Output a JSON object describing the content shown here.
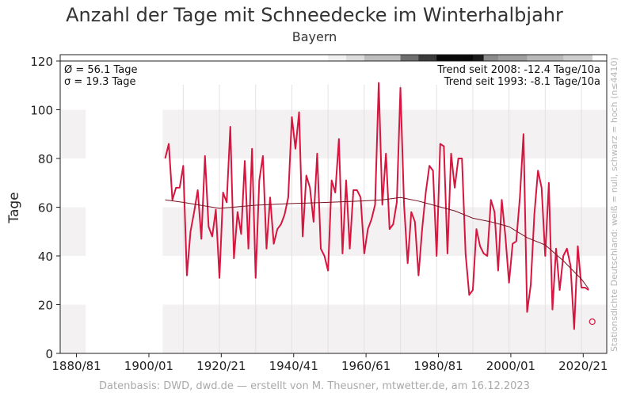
{
  "chart_data": {
    "type": "line",
    "title": "Anzahl der Tage mit Schneedecke im Winterhalbjahr",
    "subtitle": "Bayern",
    "ylabel": "Tage",
    "ylim": [
      0,
      120
    ],
    "yticks": [
      0,
      20,
      40,
      60,
      80,
      100,
      120
    ],
    "xlim": [
      1876,
      2027
    ],
    "xticks": [
      {
        "year": 1880,
        "label": "1880/81"
      },
      {
        "year": 1900,
        "label": "1900/01"
      },
      {
        "year": 1920,
        "label": "1920/21"
      },
      {
        "year": 1940,
        "label": "1940/41"
      },
      {
        "year": 1960,
        "label": "1960/61"
      },
      {
        "year": 1980,
        "label": "1980/81"
      },
      {
        "year": 2000,
        "label": "2000/01"
      },
      {
        "year": 2020,
        "label": "2020/21"
      }
    ],
    "stats": {
      "mean": "Ø = 56.1 Tage",
      "sigma": "σ = 19.3 Tage"
    },
    "trends": [
      "Trend seit 2008: -12.4 Tage/10a",
      "Trend seit 1993: -8.1 Tage/10a"
    ],
    "series_color": "#d6163f",
    "trend_color": "#7a1020",
    "x": [
      1905,
      1906,
      1907,
      1908,
      1909,
      1910,
      1911,
      1912,
      1913,
      1914,
      1915,
      1916,
      1917,
      1918,
      1919,
      1920,
      1921,
      1922,
      1923,
      1924,
      1925,
      1926,
      1927,
      1928,
      1929,
      1930,
      1931,
      1932,
      1933,
      1934,
      1935,
      1936,
      1937,
      1938,
      1939,
      1940,
      1941,
      1942,
      1943,
      1944,
      1945,
      1946,
      1947,
      1948,
      1949,
      1950,
      1951,
      1952,
      1953,
      1954,
      1955,
      1956,
      1957,
      1958,
      1959,
      1960,
      1961,
      1962,
      1963,
      1964,
      1965,
      1966,
      1967,
      1968,
      1969,
      1970,
      1971,
      1972,
      1973,
      1974,
      1975,
      1976,
      1977,
      1978,
      1979,
      1980,
      1981,
      1982,
      1983,
      1984,
      1985,
      1986,
      1987,
      1988,
      1989,
      1990,
      1991,
      1992,
      1993,
      1994,
      1995,
      1996,
      1997,
      1998,
      1999,
      2000,
      2001,
      2002,
      2003,
      2004,
      2005,
      2006,
      2007,
      2008,
      2009,
      2010,
      2011,
      2012,
      2013,
      2014,
      2015,
      2016,
      2017,
      2018,
      2019,
      2020,
      2021,
      2022
    ],
    "values": [
      80,
      86,
      63,
      68,
      68,
      77,
      32,
      50,
      58,
      67,
      47,
      81,
      52,
      48,
      59,
      31,
      66,
      62,
      93,
      39,
      58,
      49,
      79,
      43,
      84,
      31,
      71,
      81,
      43,
      64,
      45,
      51,
      53,
      57,
      64,
      97,
      84,
      99,
      48,
      73,
      68,
      54,
      82,
      43,
      40,
      34,
      71,
      66,
      88,
      41,
      71,
      43,
      67,
      67,
      64,
      41,
      51,
      55,
      61,
      111,
      61,
      82,
      51,
      53,
      62,
      109,
      61,
      37,
      58,
      54,
      32,
      51,
      66,
      77,
      75,
      40,
      86,
      85,
      41,
      82,
      68,
      80,
      80,
      41,
      24,
      26,
      51,
      44,
      41,
      40,
      63,
      58,
      34,
      63,
      48,
      29,
      45,
      46,
      64,
      90,
      17,
      28,
      57,
      75,
      68,
      40,
      70,
      18,
      43,
      26,
      40,
      43,
      36,
      10,
      44,
      27,
      27,
      26
    ],
    "isolated_point": {
      "x": 2023,
      "y": 13
    },
    "trend_x": [
      1905,
      1910,
      1920,
      1930,
      1940,
      1950,
      1960,
      1965,
      1970,
      1975,
      1980,
      1985,
      1990,
      1995,
      2000,
      2005,
      2010,
      2015,
      2020,
      2022
    ],
    "trend_values": [
      63,
      62,
      59.5,
      60.8,
      61.5,
      62,
      62.6,
      63,
      64,
      62.5,
      60.5,
      58.5,
      55.5,
      54,
      52,
      47.5,
      44.5,
      38,
      30.5,
      26.5
    ],
    "colorbar_label": "Stationsdichte Deutschland: weiß = null, schwarz = hoch (n≤4410)",
    "footer": "Datenbasis: DWD, dwd.de — erstellt von M. Theusner, mtwetter.de, am 16.12.2023"
  }
}
